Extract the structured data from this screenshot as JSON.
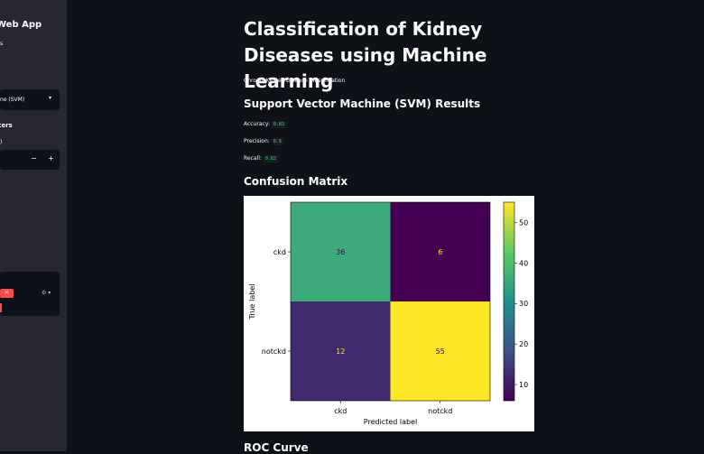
{
  "sidebar": {
    "title": "Web App",
    "subtitle": "s",
    "model_select": "ne (SVM)",
    "section": "ters",
    "param_label": ")",
    "minus": "−",
    "plus": "+",
    "chip_remove": "✕"
  },
  "main": {
    "title": "Classification of Kidney Diseases using Machine Learning",
    "subtitle": "Chronic Kidney Disease Classification",
    "results_heading": "Support Vector Machine (SVM) Results",
    "metrics": [
      {
        "label": "Accuracy:",
        "value": "0.83"
      },
      {
        "label": "Precision:",
        "value": "0.9"
      },
      {
        "label": "Recall:",
        "value": "0.82"
      }
    ],
    "cm_heading": "Confusion Matrix",
    "roc_heading": "ROC Curve"
  },
  "chart_data": {
    "type": "heatmap",
    "x_categories": [
      "ckd",
      "notckd"
    ],
    "y_categories": [
      "ckd",
      "notckd"
    ],
    "values": [
      [
        36,
        6
      ],
      [
        12,
        55
      ]
    ],
    "xlabel": "Predicted label",
    "ylabel": "True label",
    "colormap": "viridis",
    "clim": [
      6,
      55
    ],
    "colorbar_ticks": [
      10,
      20,
      30,
      40,
      50
    ]
  }
}
